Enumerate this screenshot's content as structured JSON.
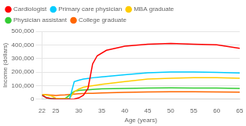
{
  "chart_data": {
    "type": "line",
    "xlabel": "Age (years)",
    "ylabel": "Income (dollars)",
    "xlim": [
      22,
      65
    ],
    "ylim": [
      0,
      500000
    ],
    "xticks": [
      22,
      25,
      30,
      35,
      40,
      45,
      50,
      55,
      60,
      65
    ],
    "yticks": [
      0,
      {
        "value": 100000,
        "label": "100,000"
      },
      {
        "value": 200000,
        "label": "200,000"
      },
      {
        "value": 300000,
        "label": "300,000"
      },
      {
        "value": 400000,
        "label": "400,000"
      },
      {
        "value": 500000,
        "label": "500,000"
      }
    ],
    "grid": "y",
    "legend": "upper left",
    "series": [
      {
        "name": "Cardiologist",
        "color": "#ff0000",
        "x": [
          22,
          23,
          24,
          25,
          26,
          27,
          28,
          29,
          30,
          31,
          32,
          33,
          34,
          36,
          40,
          45,
          50,
          55,
          60,
          65
        ],
        "values": [
          30000,
          10000,
          5000,
          2000,
          1000,
          1000,
          1000,
          2000,
          10000,
          30000,
          80000,
          260000,
          320000,
          360000,
          390000,
          405000,
          410000,
          405000,
          400000,
          375000
        ]
      },
      {
        "name": "Primary care physician",
        "color": "#00ccff",
        "x": [
          22,
          23,
          24,
          25,
          26,
          27,
          28,
          29,
          30,
          31,
          32,
          33,
          35,
          40,
          45,
          50,
          55,
          60,
          65
        ],
        "values": [
          30000,
          10000,
          5000,
          2000,
          1000,
          1000,
          3000,
          130000,
          140000,
          148000,
          153000,
          158000,
          165000,
          180000,
          195000,
          200000,
          200000,
          198000,
          193000
        ]
      },
      {
        "name": "MBA graduate",
        "color": "#ffcc00",
        "x": [
          22,
          23,
          24,
          25,
          26,
          27,
          28,
          29,
          30,
          31,
          32,
          33,
          35,
          40,
          45,
          50,
          55,
          60,
          65
        ],
        "values": [
          35000,
          30000,
          25000,
          8000,
          5000,
          5000,
          8000,
          55000,
          75000,
          88000,
          95000,
          100000,
          110000,
          130000,
          148000,
          155000,
          158000,
          158000,
          155000
        ]
      },
      {
        "name": "Physician assistant",
        "color": "#33cc33",
        "x": [
          22,
          23,
          24,
          25,
          26,
          27,
          28,
          29,
          30,
          31,
          32,
          33,
          35,
          40,
          45,
          50,
          55,
          60,
          65
        ],
        "values": [
          30000,
          10000,
          5000,
          2000,
          2000,
          5000,
          30000,
          58000,
          65000,
          68000,
          70000,
          72000,
          76000,
          80000,
          83000,
          84000,
          83000,
          82000,
          80000
        ]
      },
      {
        "name": "College graduate",
        "color": "#ff6600",
        "x": [
          22,
          23,
          24,
          25,
          26,
          27,
          28,
          29,
          30,
          31,
          32,
          33,
          35,
          40,
          45,
          50,
          55,
          60,
          65
        ],
        "values": [
          35000,
          33000,
          31000,
          28000,
          30000,
          32000,
          35000,
          38000,
          40000,
          42000,
          43000,
          44000,
          46000,
          50000,
          53000,
          55000,
          55000,
          54000,
          52000
        ]
      }
    ]
  }
}
